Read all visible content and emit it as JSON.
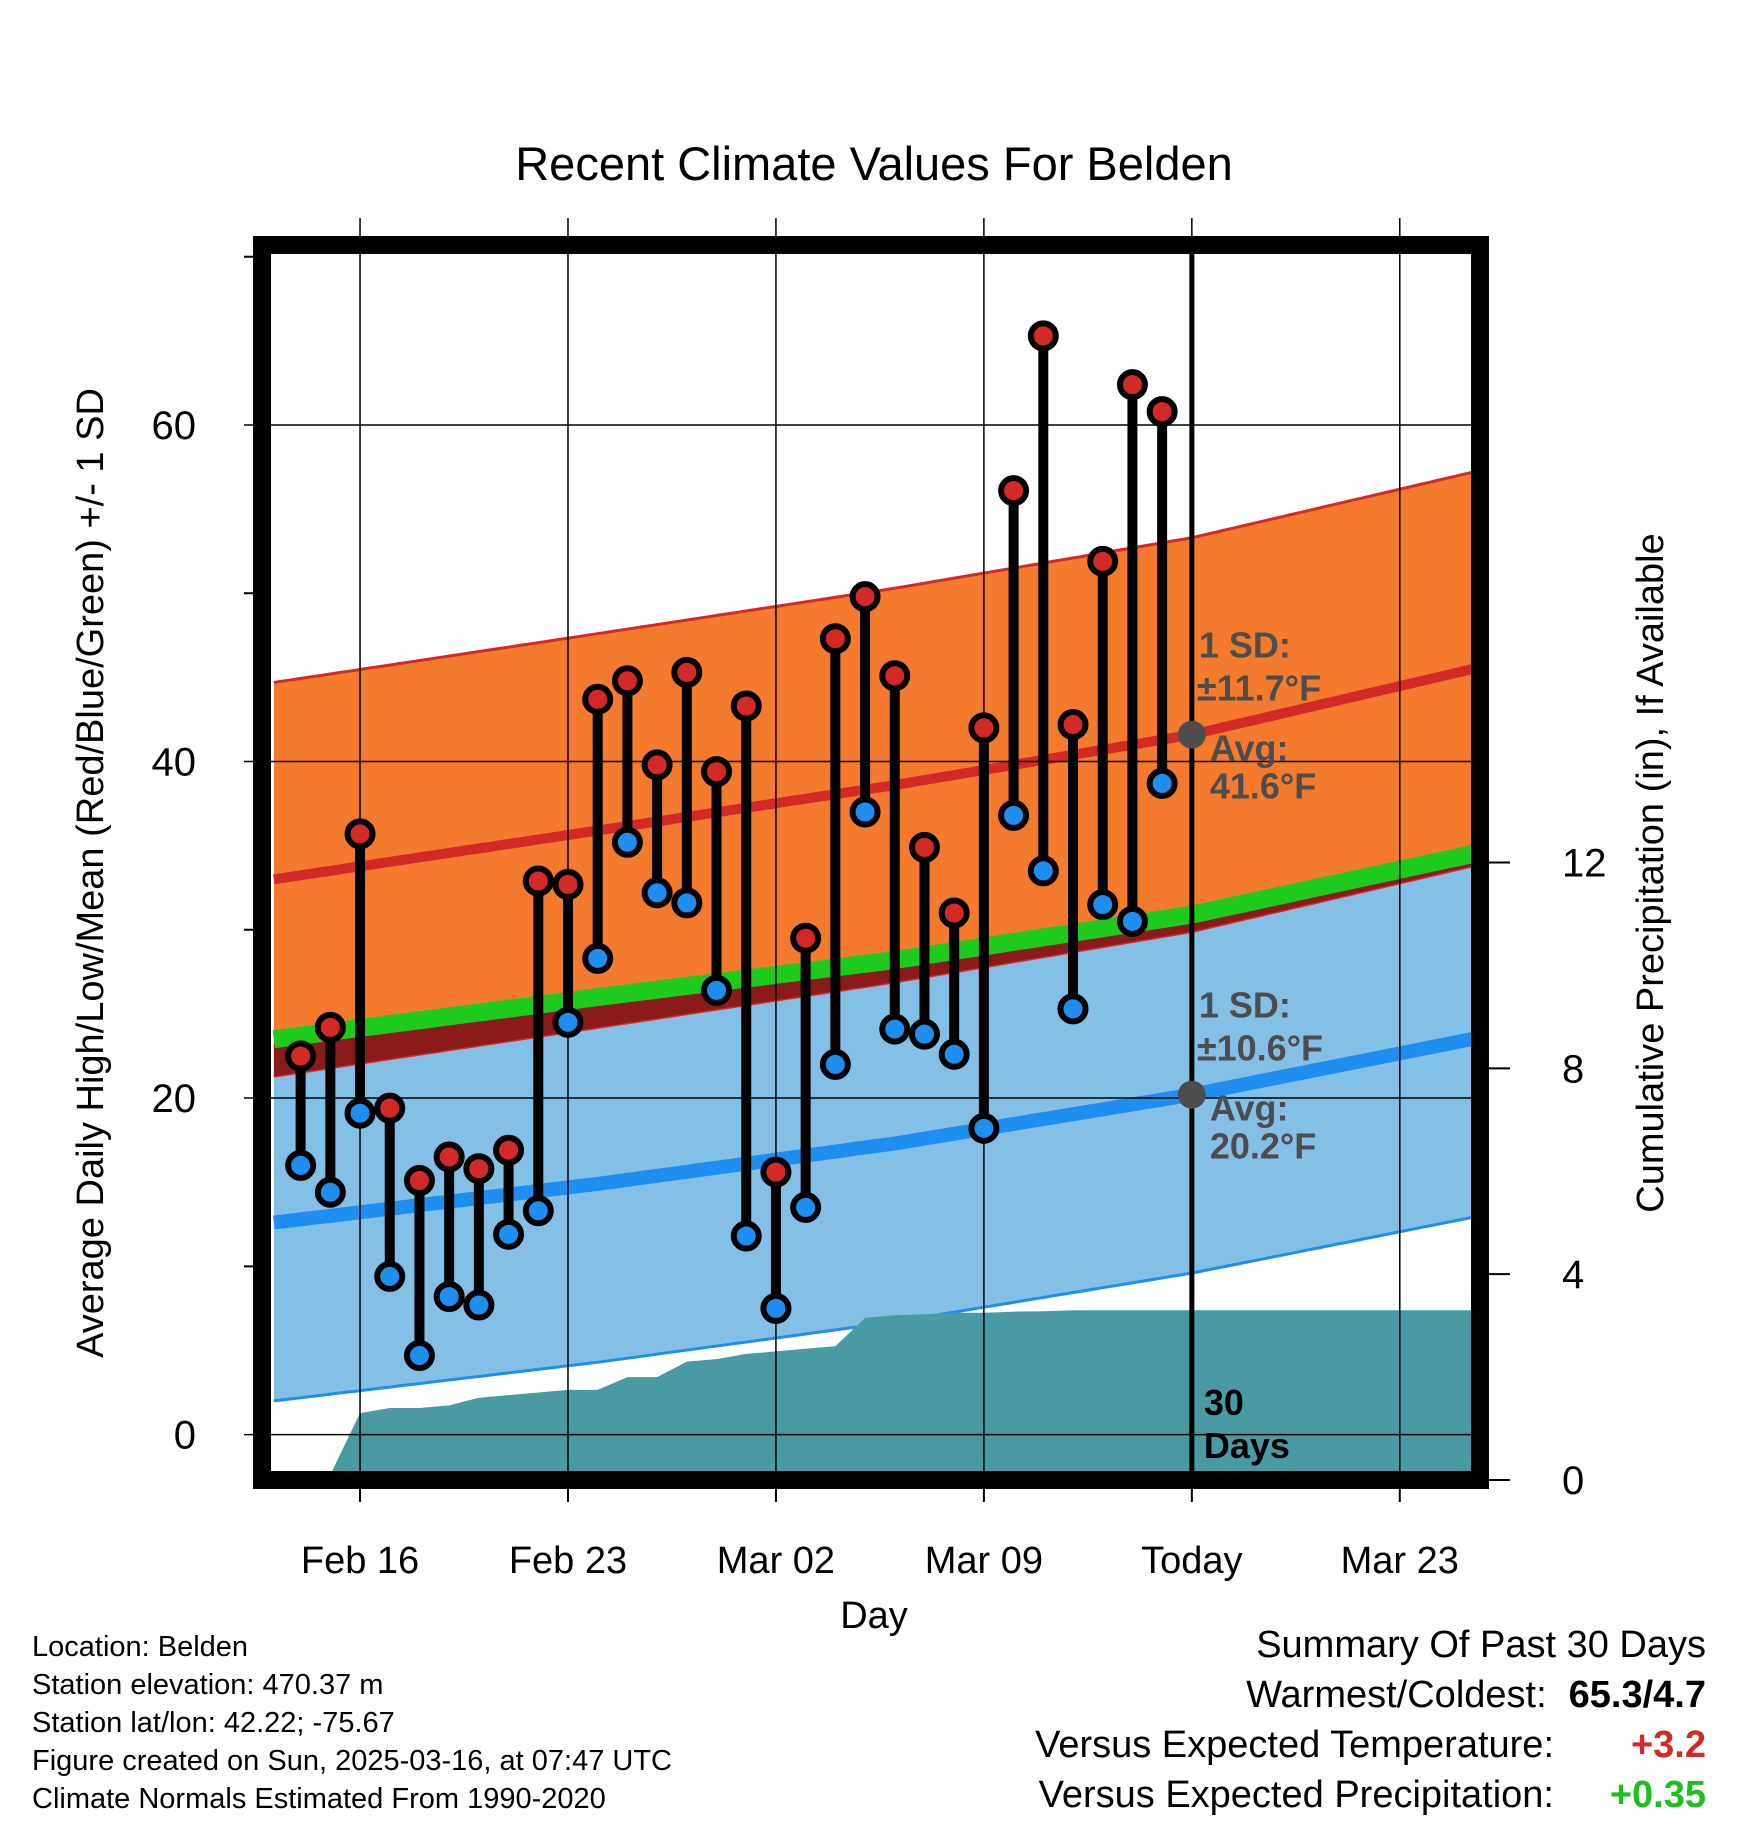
{
  "chart_data": {
    "type": "line",
    "title": "Recent Climate Values For Belden",
    "xlabel": "Day",
    "ylabel_left": "Average Daily High/Low/Mean (Red/Blue/Green) +/- 1 SD",
    "ylabel_right": "Cumulative Precipitation (in), If Available",
    "x_tick_labels": [
      "Feb 16",
      "Feb 23",
      "Mar 02",
      "Mar 09",
      "Today",
      "Mar 23"
    ],
    "y_left_ticks": [
      "0",
      "20",
      "40",
      "60"
    ],
    "y_right_ticks": [
      "0",
      "4",
      "8",
      "12"
    ],
    "ylim_left": [
      -2.7,
      70.7
    ],
    "ylim_right": [
      0,
      24
    ],
    "grid": true,
    "day_axis_range": [
      -31.3,
      9.7
    ],
    "today_marker_label": [
      "30",
      "Days"
    ],
    "daily": {
      "days": [
        -30,
        -29,
        -28,
        -27,
        -26,
        -25,
        -24,
        -23,
        -22,
        -21,
        -20,
        -19,
        -18,
        -17,
        -16,
        -15,
        -14,
        -13,
        -12,
        -11,
        -10,
        -9,
        -8,
        -7,
        -6,
        -5,
        -4,
        -3,
        -2,
        -1
      ],
      "high": [
        22.5,
        24.2,
        35.7,
        19.4,
        15.1,
        16.5,
        15.8,
        16.9,
        32.9,
        32.7,
        43.7,
        44.8,
        39.8,
        45.3,
        39.4,
        43.3,
        15.6,
        29.5,
        47.3,
        49.8,
        45.1,
        34.9,
        31.0,
        42.0,
        56.1,
        65.3,
        42.2,
        51.9,
        62.4,
        60.8
      ],
      "low": [
        16.0,
        14.4,
        19.1,
        9.4,
        4.7,
        8.2,
        7.7,
        11.9,
        13.3,
        24.5,
        28.3,
        35.2,
        32.2,
        31.6,
        26.4,
        11.8,
        7.5,
        13.5,
        22.0,
        37.0,
        24.1,
        23.8,
        22.6,
        18.2,
        36.8,
        33.5,
        25.3,
        31.5,
        30.5,
        38.7
      ]
    },
    "normals": {
      "days": [
        -30.9,
        -20,
        -10,
        0,
        9.7
      ],
      "high_mean": [
        33.0,
        35.9,
        38.6,
        41.6,
        45.6
      ],
      "high_sd": 11.7,
      "low_mean": [
        12.6,
        14.9,
        17.3,
        20.2,
        23.6
      ],
      "low_sd": 10.6,
      "mean": [
        23.5,
        26.0,
        28.2,
        30.9,
        34.6
      ]
    },
    "precipitation": {
      "days": [
        -30.9,
        -30,
        -29,
        -28,
        -27,
        -26,
        -25,
        -24,
        -23,
        -22,
        -21,
        -20,
        -19,
        -18,
        -17,
        -16,
        -15,
        -14,
        -13,
        -12,
        -11,
        -10,
        -9,
        -8,
        -7,
        -6,
        -5,
        -4,
        -3,
        -2,
        -1,
        0,
        9.7
      ],
      "cumulative": [
        0,
        0,
        0.1,
        1.3,
        1.4,
        1.4,
        1.45,
        1.6,
        1.65,
        1.7,
        1.75,
        1.75,
        2.0,
        2.0,
        2.3,
        2.35,
        2.45,
        2.5,
        2.55,
        2.6,
        3.15,
        3.2,
        3.22,
        3.25,
        3.25,
        3.27,
        3.28,
        3.3,
        3.3,
        3.3,
        3.3,
        3.3,
        3.3
      ]
    },
    "annotations": {
      "high": {
        "sd_label": "1 SD:",
        "sd_value": "±11.7°F",
        "avg_label": "Avg:",
        "avg_value": "41.6°F",
        "avg": 41.6
      },
      "low": {
        "sd_label": "1 SD:",
        "sd_value": "±10.6°F",
        "avg_label": "Avg:",
        "avg_value": "20.2°F",
        "avg": 20.2
      }
    },
    "colors": {
      "high_band": "#F47B2E",
      "high_line": "#D42A27",
      "low_band": "#84C0E6",
      "low_line": "#1E8EF0",
      "mean_line": "#1ECA1E",
      "precip": "#4A9AA3",
      "high_dot": "#D42A27",
      "low_dot": "#1E8EF0",
      "annotation": "#4D4D4D",
      "dark_overlap": "#8B1A1A"
    }
  },
  "info": {
    "location": "Location: Belden",
    "elevation": "Station elevation: 470.37 m",
    "latlon": "Station lat/lon: 42.22; -75.67",
    "created": "Figure created on Sun, 2025-03-16, at 07:47 UTC",
    "normals": "Climate Normals Estimated From 1990-2020"
  },
  "summary": {
    "heading": "Summary Of Past 30 Days",
    "warm_cold_label": "Warmest/Coldest:",
    "warm_cold_value": "65.3/4.7",
    "temp_label": "Versus Expected Temperature:",
    "temp_value": "+3.2",
    "temp_color": "#D42A27",
    "precip_label": "Versus Expected Precipitation:",
    "precip_value": "+0.35",
    "precip_color": "#1EC01E"
  }
}
